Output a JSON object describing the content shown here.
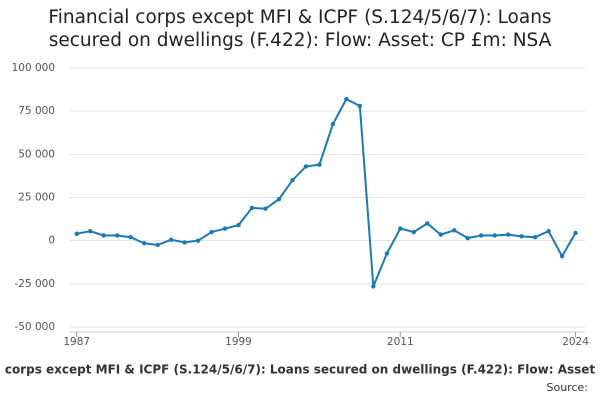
{
  "chart_data": {
    "type": "line",
    "title": "Financial corps except MFI & ICPF (S.124/5/6/7): Loans secured on dwellings (F.422): Flow: Asset: CP £m: NSA",
    "x_label": "corps except MFI & ICPF (S.124/5/6/7): Loans secured on dwellings (F.422): Flow: Asset",
    "source": "Source:",
    "x": [
      1987,
      1988,
      1989,
      1990,
      1991,
      1992,
      1993,
      1994,
      1995,
      1996,
      1997,
      1998,
      1999,
      2000,
      2001,
      2002,
      2003,
      2004,
      2005,
      2006,
      2007,
      2008,
      2009,
      2010,
      2011,
      2012,
      2013,
      2014,
      2015,
      2016,
      2017,
      2018,
      2019,
      2020,
      2021,
      2022,
      2023,
      2024
    ],
    "series": [
      {
        "name": "Loans secured on dwellings",
        "color": "#1a7ab5",
        "values": [
          4000,
          5500,
          3000,
          3000,
          2000,
          -1500,
          -2500,
          500,
          -1000,
          0,
          5000,
          7000,
          9000,
          19000,
          18500,
          24000,
          35000,
          43000,
          44000,
          67500,
          82000,
          78000,
          -26500,
          -7500,
          7000,
          5000,
          10000,
          3500,
          6000,
          1500,
          3000,
          3000,
          3500,
          2500,
          2000,
          5500,
          -9000,
          4500
        ]
      }
    ],
    "xlim": [
      1986.5,
      2024.7
    ],
    "xticks": [
      1987,
      1999,
      2011,
      2024
    ],
    "ylim": [
      -50000,
      100000
    ],
    "yticks": [
      {
        "value": -50000,
        "label": "-50 000"
      },
      {
        "value": -25000,
        "label": "-25 000"
      },
      0,
      {
        "value": 25000,
        "label": "25 000"
      },
      {
        "value": 50000,
        "label": "50 000"
      },
      {
        "value": 75000,
        "label": "75 000"
      },
      {
        "value": 100000,
        "label": "100 000"
      }
    ],
    "grid": true
  }
}
